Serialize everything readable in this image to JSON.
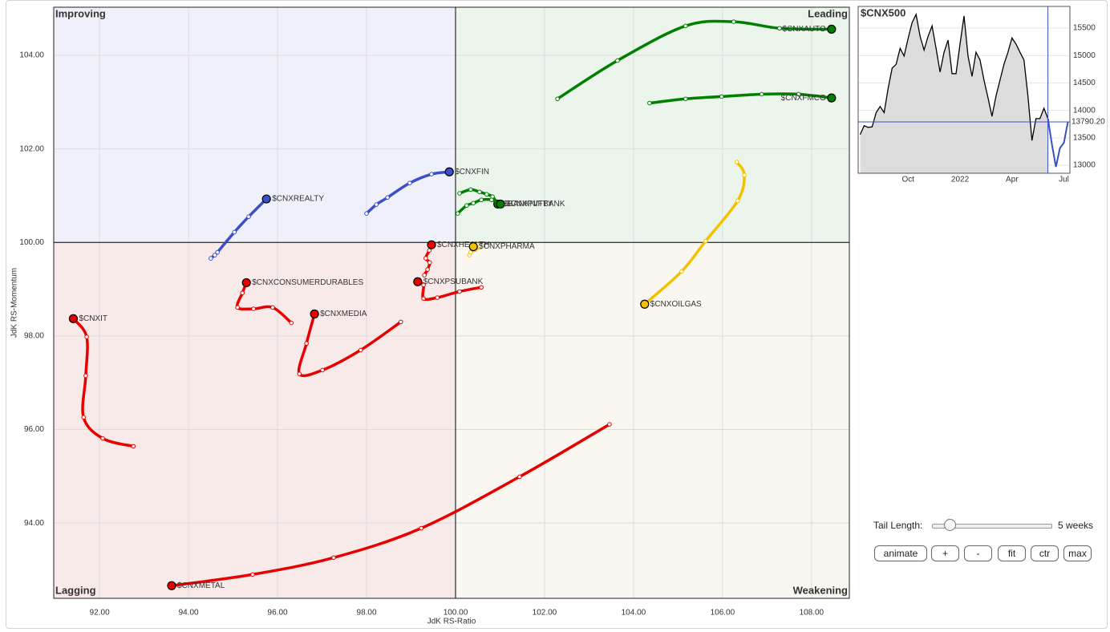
{
  "chart_data": [
    {
      "type": "rrg",
      "x_label": "JdK RS-Ratio",
      "y_label": "JdK RS-Momentum",
      "quadrants": {
        "top_left": "Improving",
        "top_right": "Leading",
        "bottom_left": "Lagging",
        "bottom_right": "Weakening"
      },
      "center_x": 100,
      "center_y": 100,
      "xlim": [
        90.97,
        108.85
      ],
      "ylim": [
        92.39,
        105.03
      ],
      "xticks": [
        {
          "value": 92,
          "label": "92.00"
        },
        {
          "value": 94,
          "label": "94.00"
        },
        {
          "value": 96,
          "label": "96.00"
        },
        {
          "value": 98,
          "label": "98.00"
        },
        {
          "value": 100,
          "label": "100.00"
        },
        {
          "value": 102,
          "label": "102.00"
        },
        {
          "value": 104,
          "label": "104.00"
        },
        {
          "value": 106,
          "label": "106.00"
        },
        {
          "value": 108,
          "label": "108.00"
        }
      ],
      "yticks": [
        {
          "value": 94,
          "label": "94.00"
        },
        {
          "value": 96,
          "label": "96.00"
        },
        {
          "value": 98,
          "label": "98.00"
        },
        {
          "value": 100,
          "label": "100.00"
        },
        {
          "value": 102,
          "label": "102.00"
        },
        {
          "value": 104,
          "label": "104.00"
        }
      ],
      "grid": true,
      "series": [
        {
          "name": "$CNXAUTO",
          "color": "#008000",
          "x": [
            102.29,
            103.64,
            105.17,
            106.25,
            107.28,
            108.45
          ],
          "y": [
            103.07,
            103.89,
            104.63,
            104.72,
            104.58,
            104.56
          ]
        },
        {
          "name": "$CNXFMCG",
          "color": "#008000",
          "x": [
            104.36,
            105.17,
            105.98,
            106.88,
            107.71,
            108.45
          ],
          "y": [
            102.98,
            103.07,
            103.12,
            103.17,
            103.17,
            103.09
          ]
        },
        {
          "name": "$CNXFIN",
          "color": "#3a4fc8",
          "x": [
            98.0,
            98.22,
            98.47,
            98.97,
            99.46,
            99.86
          ],
          "y": [
            100.62,
            100.81,
            100.96,
            101.27,
            101.46,
            101.51
          ]
        },
        {
          "name": "$CNXREALTY",
          "color": "#3a4fc8",
          "x": [
            94.5,
            94.59,
            94.65,
            95.03,
            95.35,
            95.75
          ],
          "y": [
            99.66,
            99.73,
            99.79,
            100.22,
            100.55,
            100.93
          ]
        },
        {
          "name": "$BANKNIFTY",
          "color": "#008000",
          "x": [
            100.09,
            100.34,
            100.54,
            100.7,
            100.83,
            100.95
          ],
          "y": [
            101.05,
            101.13,
            101.08,
            101.03,
            100.98,
            100.82
          ]
        },
        {
          "name": "$CNXPVTBANK",
          "color": "#008000",
          "x": [
            100.05,
            100.25,
            100.4,
            100.58,
            100.81,
            101.01
          ],
          "y": [
            100.62,
            100.79,
            100.84,
            100.91,
            100.91,
            100.82
          ]
        },
        {
          "name": "$CNXHEALTH",
          "color": "#e80000",
          "x": [
            99.3,
            99.37,
            99.42,
            99.33,
            99.41,
            99.46
          ],
          "y": [
            99.3,
            99.42,
            99.57,
            99.66,
            99.83,
            99.95
          ]
        },
        {
          "name": "$CNXPHARMA",
          "color": "#f2c200",
          "x": [
            100.31,
            100.34,
            100.45,
            100.54,
            100.49,
            100.4
          ],
          "y": [
            99.73,
            99.79,
            99.85,
            99.9,
            99.95,
            99.91
          ]
        },
        {
          "name": "$CNXPSUBANK",
          "color": "#e80000",
          "x": [
            100.58,
            100.09,
            99.59,
            99.28,
            99.28,
            99.15
          ],
          "y": [
            99.04,
            98.95,
            98.82,
            98.8,
            99.09,
            99.16
          ]
        },
        {
          "name": "$CNXOILGAS",
          "color": "#f2c200",
          "x": [
            106.32,
            106.49,
            106.34,
            105.62,
            105.08,
            104.25
          ],
          "y": [
            101.72,
            101.44,
            100.89,
            100.03,
            99.38,
            98.68
          ]
        },
        {
          "name": "$CNXCONSUMERDURABLES",
          "color": "#e80000",
          "x": [
            96.31,
            95.89,
            95.46,
            95.1,
            95.21,
            95.3
          ],
          "y": [
            98.28,
            98.61,
            98.58,
            98.61,
            98.92,
            99.14
          ]
        },
        {
          "name": "$CNXMEDIA",
          "color": "#e80000",
          "x": [
            98.77,
            97.87,
            97.01,
            96.49,
            96.65,
            96.83
          ],
          "y": [
            98.3,
            97.7,
            97.27,
            97.19,
            97.84,
            98.47
          ]
        },
        {
          "name": "$CNXIT",
          "color": "#e80000",
          "x": [
            92.76,
            92.07,
            91.64,
            91.69,
            91.71,
            91.41
          ],
          "y": [
            95.64,
            95.81,
            96.26,
            97.15,
            97.98,
            98.37
          ]
        },
        {
          "name": "$CNXMETAL",
          "color": "#e80000",
          "x": [
            103.46,
            101.44,
            99.23,
            97.26,
            95.44,
            93.62
          ],
          "y": [
            96.11,
            94.99,
            93.89,
            93.26,
            92.9,
            92.66
          ]
        }
      ]
    },
    {
      "type": "line",
      "title": "$CNX500",
      "categories": [
        null,
        null,
        null,
        null,
        null,
        null,
        null,
        null,
        null,
        null,
        null,
        null,
        "Oct",
        null,
        null,
        null,
        null,
        null,
        null,
        null,
        null,
        null,
        null,
        null,
        null,
        "2022",
        null,
        null,
        null,
        null,
        null,
        null,
        null,
        null,
        null,
        null,
        null,
        null,
        "Apr",
        null,
        null,
        null,
        null,
        null,
        null,
        null,
        null,
        null,
        null,
        null,
        null,
        "Jul",
        null
      ],
      "ylim": [
        12854,
        15895
      ],
      "yticks": [
        13000,
        13500,
        14000,
        14500,
        15000,
        15500
      ],
      "grid": true,
      "series": [
        {
          "color": "#000000",
          "values": [
            13560,
            13720,
            13690,
            13700,
            13960,
            14070,
            13960,
            14400,
            14770,
            14840,
            15130,
            14990,
            15310,
            15600,
            15750,
            15350,
            15100,
            15350,
            15540,
            15130,
            14700,
            15060,
            15280,
            14670,
            14670,
            15210,
            15720,
            14990,
            14620,
            15060,
            14920,
            14550,
            14230,
            13890,
            14260,
            14550,
            14840,
            15060,
            15320,
            15210,
            15060,
            14920,
            14260,
            13450,
            13850,
            13850,
            14040,
            13850,
            null,
            null,
            null,
            null,
            null
          ]
        },
        {
          "color": "#3a4fc8",
          "values": [
            null,
            null,
            null,
            null,
            null,
            null,
            null,
            null,
            null,
            null,
            null,
            null,
            null,
            null,
            null,
            null,
            null,
            null,
            null,
            null,
            null,
            null,
            null,
            null,
            null,
            null,
            null,
            null,
            null,
            null,
            null,
            null,
            null,
            null,
            null,
            null,
            null,
            null,
            null,
            null,
            null,
            null,
            null,
            null,
            null,
            null,
            null,
            13850,
            13380,
            12970,
            13310,
            13410,
            13790.2
          ],
          "value_labels": [
            null,
            null,
            null,
            null,
            null,
            null,
            null,
            null,
            null,
            null,
            null,
            null,
            null,
            null,
            null,
            null,
            null,
            null,
            null,
            null,
            null,
            null,
            null,
            null,
            null,
            null,
            null,
            null,
            null,
            null,
            null,
            null,
            null,
            null,
            null,
            null,
            null,
            null,
            null,
            null,
            null,
            null,
            null,
            null,
            null,
            null,
            null,
            null,
            null,
            null,
            null,
            null,
            "13790.20"
          ]
        }
      ]
    }
  ],
  "controls": {
    "tail_label": "Tail Length:",
    "tail_value": "5 weeks",
    "buttons": [
      "animate",
      "+",
      "-",
      "fit",
      "ctr",
      "max"
    ]
  }
}
